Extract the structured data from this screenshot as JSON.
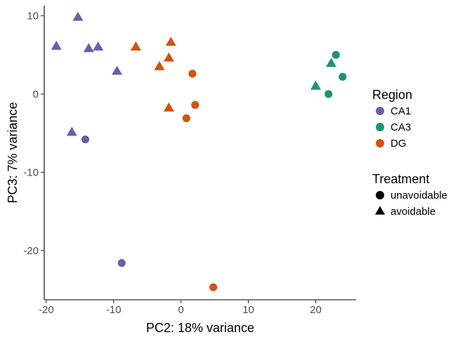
{
  "chart_data": {
    "type": "scatter",
    "xlabel": "PC2: 18% variance",
    "ylabel": "PC3: 7% variance",
    "xlim": [
      -20.3,
      26.0
    ],
    "ylim": [
      -26.3,
      11.3
    ],
    "x_ticks": [
      -20,
      -10,
      0,
      10,
      20
    ],
    "y_ticks": [
      10,
      0,
      -10,
      -20
    ],
    "grid": false,
    "legend_placement": "right",
    "color_legend": {
      "title": "Region",
      "entries": [
        {
          "label": "CA1",
          "color": "#6a5fad"
        },
        {
          "label": "CA3",
          "color": "#1c9473"
        },
        {
          "label": "DG",
          "color": "#d2520e"
        }
      ]
    },
    "shape_legend": {
      "title": "Treatment",
      "entries": [
        {
          "label": "unavoidable",
          "shape": "circle"
        },
        {
          "label": "avoidable",
          "shape": "triangle"
        }
      ]
    },
    "points": [
      {
        "x": -15.3,
        "y": 9.8,
        "region": "CA1",
        "treatment": "avoidable"
      },
      {
        "x": -18.5,
        "y": 6.1,
        "region": "CA1",
        "treatment": "avoidable"
      },
      {
        "x": -13.7,
        "y": 5.8,
        "region": "CA1",
        "treatment": "avoidable"
      },
      {
        "x": -12.3,
        "y": 6.0,
        "region": "CA1",
        "treatment": "avoidable"
      },
      {
        "x": -9.5,
        "y": 2.9,
        "region": "CA1",
        "treatment": "avoidable"
      },
      {
        "x": -16.2,
        "y": -4.9,
        "region": "CA1",
        "treatment": "avoidable"
      },
      {
        "x": -14.2,
        "y": -5.8,
        "region": "CA1",
        "treatment": "unavoidable"
      },
      {
        "x": -8.8,
        "y": -21.6,
        "region": "CA1",
        "treatment": "unavoidable"
      },
      {
        "x": 23.0,
        "y": 5.0,
        "region": "CA3",
        "treatment": "unavoidable"
      },
      {
        "x": 22.3,
        "y": 3.9,
        "region": "CA3",
        "treatment": "avoidable"
      },
      {
        "x": 24.0,
        "y": 2.2,
        "region": "CA3",
        "treatment": "unavoidable"
      },
      {
        "x": 20.0,
        "y": 1.0,
        "region": "CA3",
        "treatment": "avoidable"
      },
      {
        "x": 21.9,
        "y": 0.0,
        "region": "CA3",
        "treatment": "unavoidable"
      },
      {
        "x": -6.7,
        "y": 6.0,
        "region": "DG",
        "treatment": "avoidable"
      },
      {
        "x": -1.5,
        "y": 6.6,
        "region": "DG",
        "treatment": "avoidable"
      },
      {
        "x": -1.8,
        "y": 4.6,
        "region": "DG",
        "treatment": "avoidable"
      },
      {
        "x": -3.2,
        "y": 3.5,
        "region": "DG",
        "treatment": "avoidable"
      },
      {
        "x": 1.7,
        "y": 2.6,
        "region": "DG",
        "treatment": "unavoidable"
      },
      {
        "x": 2.1,
        "y": -1.4,
        "region": "DG",
        "treatment": "unavoidable"
      },
      {
        "x": -1.8,
        "y": -1.8,
        "region": "DG",
        "treatment": "avoidable"
      },
      {
        "x": 0.8,
        "y": -3.1,
        "region": "DG",
        "treatment": "unavoidable"
      },
      {
        "x": 4.8,
        "y": -24.7,
        "region": "DG",
        "treatment": "unavoidable"
      }
    ]
  }
}
